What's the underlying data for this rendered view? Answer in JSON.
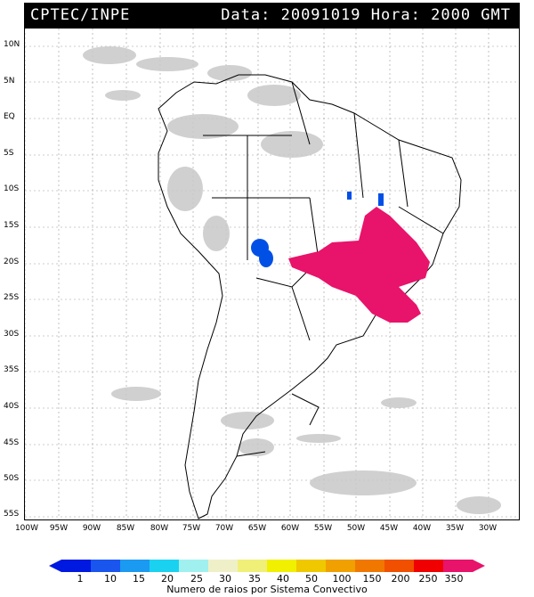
{
  "header": {
    "source": "CPTEC/INPE",
    "datetime": "Data: 20091019 Hora: 2000 GMT"
  },
  "map": {
    "lat_ticks": [
      "10N",
      "5N",
      "EQ",
      "5S",
      "10S",
      "15S",
      "20S",
      "25S",
      "30S",
      "35S",
      "40S",
      "45S",
      "50S",
      "55S"
    ],
    "lon_ticks": [
      "100W",
      "95W",
      "90W",
      "85W",
      "80W",
      "75W",
      "70W",
      "65W",
      "60W",
      "55W",
      "50W",
      "45W",
      "40W",
      "35W",
      "30W"
    ],
    "colors": {
      "land_outline": "#000000",
      "cloud_gray": "#c8c8c8",
      "storm_blue": "#0050e6",
      "storm_magenta": "#e8136a"
    }
  },
  "colorbar": {
    "labels": [
      "1",
      "10",
      "15",
      "20",
      "25",
      "30",
      "35",
      "40",
      "50",
      "100",
      "150",
      "200",
      "250",
      "350"
    ],
    "colors": [
      "#0019e0",
      "#1a55ee",
      "#1a9af0",
      "#1ad2f0",
      "#a0f0f0",
      "#f0f0c8",
      "#f0f078",
      "#f0f000",
      "#f0c800",
      "#f0a000",
      "#f07800",
      "#f05000",
      "#f00000",
      "#e8136a"
    ],
    "title": "Numero de raios por Sistema Convectivo"
  }
}
